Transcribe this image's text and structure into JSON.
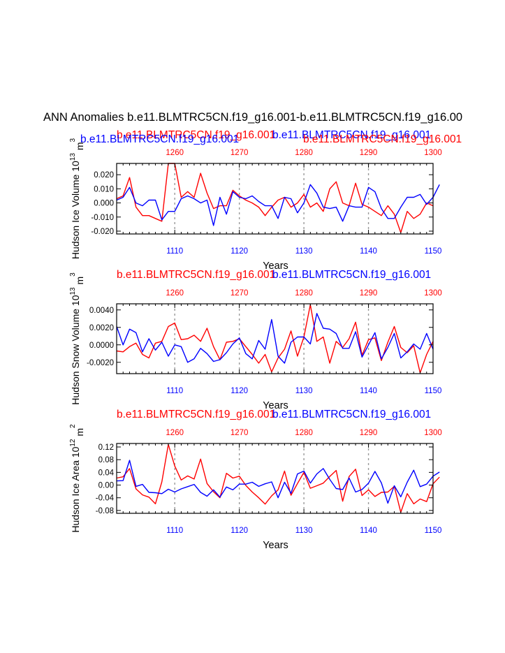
{
  "figure": {
    "title": "ANN Anomalies b.e11.BLMTRC5CN.f19_g16.001-b.e11.BLMTRC5CN.f19_g16.00"
  },
  "colors": {
    "red": "#ff0000",
    "blue": "#0000ff",
    "axis": "#000000",
    "grid": "#999999"
  },
  "chart_data": [
    {
      "type": "line",
      "ylabel": "Hudson Ice Volume 10",
      "ylabel_exp": "13",
      "ylabel_unit": " m",
      "ylabel_unit_exp": "3",
      "xlabel": "Years",
      "top_label_red": "b.e11.BLMTRC5CN.f19_g16.001",
      "top_label_blue": "b.e11.BLMTRC5CN.f19_g16.001",
      "top_label_red2": "b.e11.BLMTRC5CN.f19_g16.001",
      "top_label_blue2": "b.e11.BLMTRC5CN.f19_g16.001",
      "xlim": [
        1101,
        1150
      ],
      "top_xlim": [
        1251,
        1300
      ],
      "ylim": [
        -0.022,
        0.028
      ],
      "yticks": [
        -0.02,
        -0.01,
        0.0,
        0.01,
        0.02
      ],
      "ytick_labels": [
        "-0.020",
        "-0.010",
        "0.000",
        "0.010",
        "0.020"
      ],
      "xticks": [
        1110,
        1120,
        1130,
        1140,
        1150
      ],
      "xtick_labels": [
        "1110",
        "1120",
        "1130",
        "1140",
        "1150"
      ],
      "top_xticks": [
        1260,
        1270,
        1280,
        1290,
        1300
      ],
      "top_xtick_labels": [
        "1260",
        "1270",
        "1280",
        "1290",
        "1300"
      ],
      "grid_x": [
        1110,
        1120,
        1130,
        1140
      ],
      "series": [
        {
          "name": "b.e11.BLMTRC5CN.f19_g16.001 (red, years 1251-1300)",
          "color": "red",
          "x_start": 1101,
          "values": [
            0.003,
            0.005,
            0.018,
            -0.003,
            -0.009,
            -0.009,
            -0.011,
            -0.013,
            0.028,
            0.028,
            0.004,
            0.008,
            0.004,
            0.021,
            0.007,
            -0.004,
            -0.002,
            -0.002,
            0.009,
            0.005,
            0.002,
            0.0,
            -0.003,
            -0.009,
            -0.003,
            0.002,
            0.004,
            -0.003,
            0.0,
            0.006,
            -0.003,
            0.0,
            -0.006,
            0.01,
            0.015,
            0.0,
            -0.002,
            0.014,
            -0.001,
            -0.003,
            -0.006,
            -0.009,
            -0.002,
            -0.008,
            -0.021,
            -0.006,
            -0.011,
            -0.008,
            0.0,
            -0.002
          ]
        },
        {
          "name": "b.e11.BLMTRC5CN.f19_g16.001 (blue, years 1101-1150)",
          "color": "blue",
          "x_start": 1101,
          "values": [
            0.002,
            0.004,
            0.011,
            0.0,
            -0.002,
            0.002,
            0.002,
            -0.012,
            -0.006,
            -0.006,
            0.003,
            0.005,
            0.003,
            0.0,
            0.002,
            -0.016,
            0.004,
            -0.008,
            0.008,
            0.004,
            0.003,
            0.005,
            0.001,
            -0.002,
            -0.002,
            -0.011,
            0.004,
            0.003,
            -0.007,
            0.0,
            0.013,
            0.007,
            -0.003,
            -0.004,
            -0.003,
            -0.013,
            -0.002,
            -0.003,
            -0.003,
            0.011,
            0.008,
            -0.004,
            -0.011,
            -0.011,
            -0.003,
            0.004,
            0.004,
            0.006,
            -0.001,
            0.004,
            0.013
          ]
        }
      ]
    },
    {
      "type": "line",
      "ylabel": "Hudson Snow Volume 10",
      "ylabel_exp": "13",
      "ylabel_unit": " m",
      "ylabel_unit_exp": "3",
      "xlabel": "Years",
      "top_label_red": "b.e11.BLMTRC5CN.f19_g16.001",
      "top_label_blue": "b.e11.BLMTRC5CN.f19_g16.001",
      "xlim": [
        1101,
        1150
      ],
      "top_xlim": [
        1251,
        1300
      ],
      "ylim": [
        -0.0033,
        0.0047
      ],
      "yticks": [
        -0.002,
        0.0,
        0.002,
        0.004
      ],
      "ytick_labels": [
        "-0.0020",
        "0.0000",
        "0.0020",
        "0.0040"
      ],
      "xticks": [
        1110,
        1120,
        1130,
        1140,
        1150
      ],
      "xtick_labels": [
        "1110",
        "1120",
        "1130",
        "1140",
        "1150"
      ],
      "top_xticks": [
        1260,
        1270,
        1280,
        1290,
        1300
      ],
      "top_xtick_labels": [
        "1260",
        "1270",
        "1280",
        "1290",
        "1300"
      ],
      "grid_x": [
        1110,
        1120,
        1130,
        1140
      ],
      "series": [
        {
          "name": "b.e11.BLMTRC5CN.f19_g16.001 (red)",
          "color": "red",
          "x_start": 1101,
          "values": [
            -0.0007,
            -0.0008,
            -0.0002,
            0.0002,
            -0.0011,
            -0.0015,
            0.0002,
            0.0004,
            0.0021,
            0.0025,
            0.0006,
            0.0007,
            0.0011,
            0.0004,
            0.0019,
            -0.0002,
            -0.0017,
            0.0003,
            0.0004,
            0.0007,
            -0.0002,
            -0.0011,
            -0.0021,
            -0.0011,
            -0.0031,
            -0.0015,
            -0.0005,
            0.0016,
            -0.0013,
            0.0009,
            0.0046,
            0.0004,
            0.0009,
            -0.0021,
            0.0004,
            -0.0003,
            0.0007,
            0.0026,
            -0.0012,
            0.0006,
            0.0008,
            -0.0018,
            0.0003,
            0.0021,
            -0.0003,
            -0.0009,
            -0.0001,
            -0.0032,
            -0.0011,
            0.0004
          ]
        },
        {
          "name": "b.e11.BLMTRC5CN.f19_g16.001 (blue)",
          "color": "blue",
          "x_start": 1101,
          "values": [
            0.0021,
            0.0,
            0.0018,
            0.0014,
            -0.0008,
            0.0007,
            -0.0006,
            0.0003,
            -0.0013,
            0.0,
            -0.0002,
            -0.002,
            -0.0016,
            -0.0004,
            -0.001,
            -0.0019,
            -0.0017,
            -0.0009,
            0.0001,
            0.0008,
            -0.001,
            -0.0016,
            0.0005,
            -0.0005,
            0.0029,
            -0.0013,
            -0.0021,
            0.0003,
            0.0009,
            0.0009,
            0.0001,
            0.0036,
            0.0019,
            0.0018,
            0.0013,
            -0.0004,
            -0.0004,
            0.0015,
            -0.0014,
            0.0,
            0.0014,
            -0.0016,
            -0.0003,
            0.0013,
            -0.0015,
            -0.0008,
            0.0001,
            -0.0005,
            0.0013,
            -0.0005
          ]
        }
      ]
    },
    {
      "type": "line",
      "ylabel": "Hudson Ice Area 10",
      "ylabel_exp": "12",
      "ylabel_unit": " m",
      "ylabel_unit_exp": "2",
      "xlabel": "Years",
      "top_label_red": "b.e11.BLMTRC5CN.f19_g16.001",
      "top_label_blue": "b.e11.BLMTRC5CN.f19_g16.001",
      "xlim": [
        1101,
        1150
      ],
      "top_xlim": [
        1251,
        1300
      ],
      "ylim": [
        -0.089,
        0.131
      ],
      "yticks": [
        -0.08,
        -0.04,
        0.0,
        0.04,
        0.08,
        0.12
      ],
      "ytick_labels": [
        "-0.08",
        "-0.04",
        "0.00",
        "0.04",
        "0.08",
        "0.12"
      ],
      "xticks": [
        1110,
        1120,
        1130,
        1140,
        1150
      ],
      "xtick_labels": [
        "1110",
        "1120",
        "1130",
        "1140",
        "1150"
      ],
      "top_xticks": [
        1260,
        1270,
        1280,
        1290,
        1300
      ],
      "top_xtick_labels": [
        "1260",
        "1270",
        "1280",
        "1290",
        "1300"
      ],
      "grid_x": [
        1110,
        1120,
        1130,
        1140
      ],
      "series": [
        {
          "name": "b.e11.BLMTRC5CN.f19_g16.001 (red)",
          "color": "red",
          "x_start": 1101,
          "values": [
            0.022,
            0.026,
            0.052,
            -0.012,
            -0.031,
            -0.038,
            -0.059,
            0.01,
            0.128,
            0.06,
            0.016,
            0.029,
            0.019,
            0.082,
            0.005,
            -0.021,
            -0.04,
            0.037,
            0.022,
            0.028,
            -0.001,
            -0.022,
            -0.04,
            -0.06,
            -0.034,
            -0.015,
            0.044,
            -0.032,
            0.005,
            0.04,
            -0.01,
            -0.002,
            0.006,
            0.027,
            0.046,
            -0.051,
            0.027,
            0.05,
            -0.033,
            -0.015,
            -0.036,
            -0.023,
            -0.022,
            -0.004,
            -0.086,
            -0.027,
            -0.059,
            -0.044,
            -0.052,
            0.004,
            0.025
          ]
        },
        {
          "name": "b.e11.BLMTRC5CN.f19_g16.001 (blue)",
          "color": "blue",
          "x_start": 1101,
          "values": [
            0.013,
            0.014,
            0.078,
            -0.004,
            0.002,
            -0.023,
            -0.024,
            -0.027,
            -0.013,
            -0.022,
            -0.012,
            -0.005,
            0.002,
            -0.023,
            -0.035,
            -0.015,
            -0.038,
            -0.006,
            -0.015,
            0.003,
            0.003,
            0.009,
            -0.004,
            0.004,
            0.01,
            -0.04,
            0.009,
            -0.026,
            0.035,
            0.044,
            0.006,
            0.035,
            0.052,
            0.018,
            -0.011,
            -0.014,
            0.022,
            -0.022,
            -0.014,
            0.006,
            0.043,
            0.007,
            -0.057,
            -0.002,
            -0.037,
            0.009,
            0.047,
            -0.005,
            0.003,
            0.028,
            0.041
          ]
        }
      ]
    }
  ]
}
